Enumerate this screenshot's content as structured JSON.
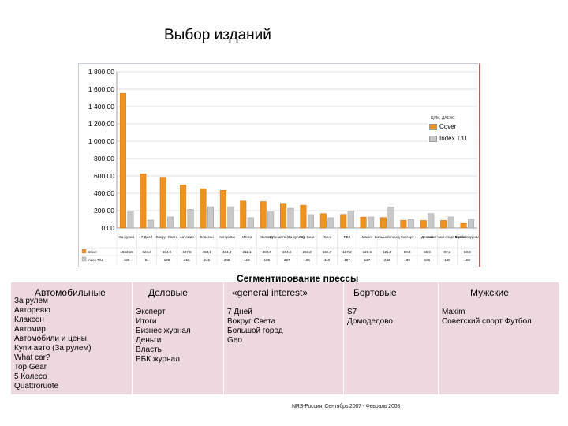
{
  "title": "Выбор изданий",
  "chart_data": {
    "type": "bar",
    "legend_title": "ЦУМ, ДАЕВС",
    "categories": [
      "За рулем",
      "7 Дней",
      "Вокруг Света",
      "Автомир",
      "Класcон",
      "Авторевю",
      "Итоги",
      "Эксперт",
      "Купи авто (За рулем)",
      "Top Gear",
      "Geo",
      "РБК",
      "Maxim",
      "Большой город",
      "Эксперт",
      "Деньги",
      "Советский спорт Футбол",
      "Бизнес журнал"
    ],
    "series": [
      {
        "name": "Cover",
        "color": "#f0921e",
        "values": [
          1553.19,
          624.3,
          584.9,
          497.5,
          453.1,
          434.4,
          311.1,
          304.5,
          284.9,
          263.2,
          165.7,
          157.2,
          126.6,
          121.0,
          89.3,
          86.8,
          87.3,
          53.3
        ]
      },
      {
        "name": "Index T/U",
        "color": "#c8c8c8",
        "values": [
          198,
          91,
          128,
          215,
          245,
          245,
          119,
          185,
          227,
          155,
          119,
          197,
          127,
          242,
          100,
          166,
          128,
          102
        ]
      }
    ],
    "table_rows": [
      {
        "label": "Cover",
        "values": [
          "1553,19",
          "624,3",
          "584,9",
          "497,5",
          "453,1",
          "434,4",
          "311,1",
          "304,5",
          "284,9",
          "263,2",
          "165,7",
          "157,2",
          "126,6",
          "121,0",
          "89,3",
          "86,8",
          "87,3",
          "53,3"
        ]
      },
      {
        "label": "Index T/U",
        "values": [
          "198",
          "91",
          "128",
          "215",
          "245",
          "245",
          "119",
          "185",
          "227",
          "155",
          "119",
          "197",
          "127",
          "242",
          "100",
          "166",
          "128",
          "102"
        ]
      }
    ],
    "ylim": [
      0,
      1800
    ],
    "yticks": [
      "0,00",
      "200,00",
      "400,00",
      "600,00",
      "800,00",
      "1 000,00",
      "1 200,00",
      "1 400,00",
      "1 600,00",
      "1 800,00"
    ],
    "grid": true,
    "legend_position": "right"
  },
  "segmentation": {
    "title": "Сегментирование прессы",
    "columns": [
      {
        "head": "Автомобильные",
        "items": [
          "За рулем",
          "Авторевю",
          "Клаксон",
          "Автомир",
          "Автомобили и цены",
          "Купи авто (За рулем)",
          "What car?",
          "Top Gear",
          "5 Колесо",
          "Quattroruote"
        ]
      },
      {
        "head": "Деловые",
        "items": [
          "Эксперт",
          "Итоги",
          "Бизнес журнал",
          "Деньги",
          "Власть",
          "РБК журнал"
        ]
      },
      {
        "head": "«general interest»",
        "items": [
          "7 Дней",
          "Вокруг Света",
          "Большой город",
          "Geo"
        ]
      },
      {
        "head": "Бортовые",
        "items": [
          "S7",
          "Домодедово"
        ]
      },
      {
        "head": "Мужские",
        "items": [
          "Maxim",
          "Советский спорт Футбол"
        ]
      }
    ]
  },
  "source": "NRS-Россия, Сентябрь 2007 - Февраль 2008"
}
